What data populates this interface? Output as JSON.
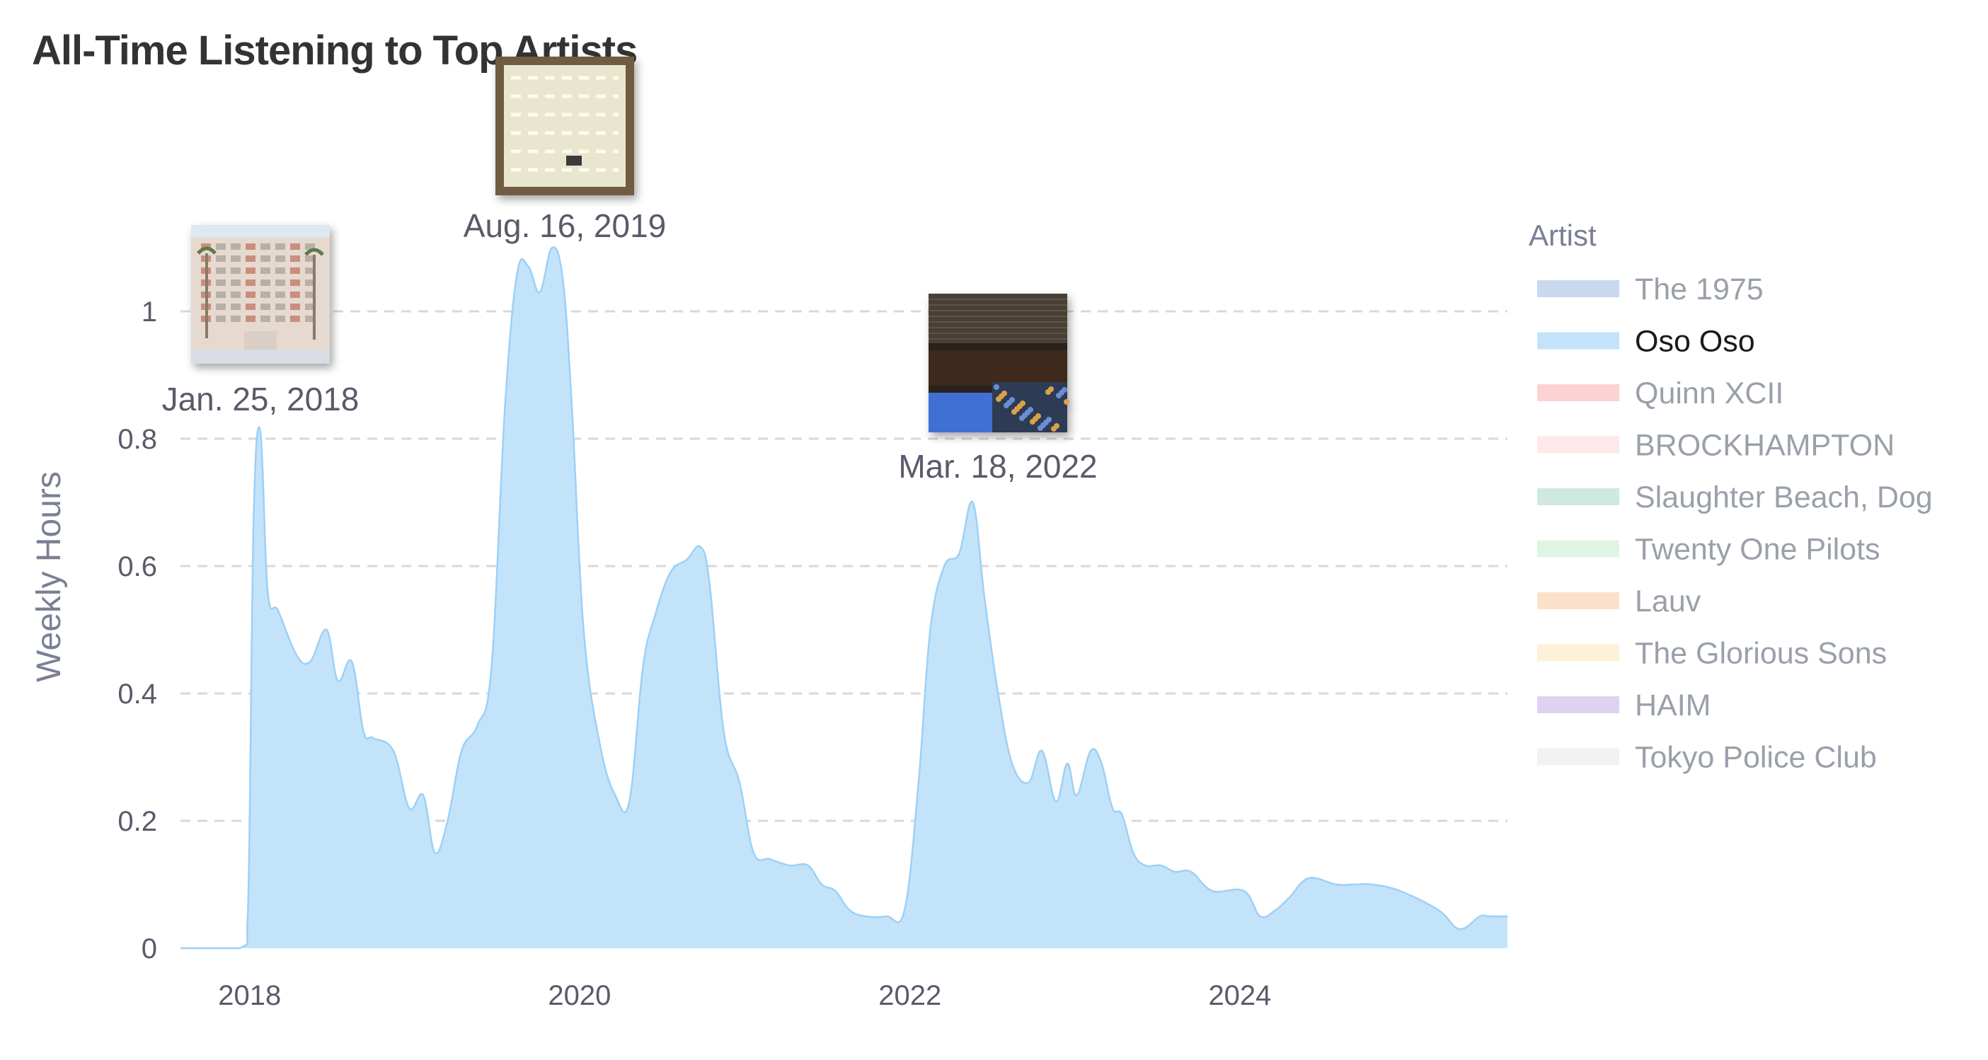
{
  "title": "All-Time Listening to Top Artists",
  "chart_data": {
    "type": "area",
    "ylabel": "Weekly Hours",
    "xlabel": "",
    "xlim": [
      "2017-08-01",
      "2025-08-15"
    ],
    "ylim": [
      0,
      1.12
    ],
    "x_ticks": [
      "2018",
      "2020",
      "2022",
      "2024"
    ],
    "y_ticks": [
      "0",
      "0.2",
      "0.4",
      "0.6",
      "0.8",
      "1"
    ],
    "grid": "horizontal dashed",
    "legend_title": "Artist",
    "legend_placement": "right",
    "legend": [
      {
        "name": "The 1975",
        "color": "#c7d8ef",
        "active": false
      },
      {
        "name": "Oso Oso",
        "color": "#c3e3fb",
        "active": true
      },
      {
        "name": "Quinn XCII",
        "color": "#fbd3d3",
        "active": false
      },
      {
        "name": "BROCKHAMPTON",
        "color": "#fde9e9",
        "active": false
      },
      {
        "name": "Slaughter Beach, Dog",
        "color": "#cfe9e0",
        "active": false
      },
      {
        "name": "Twenty One Pilots",
        "color": "#dff5e3",
        "active": false
      },
      {
        "name": "Lauv",
        "color": "#fce1ca",
        "active": false
      },
      {
        "name": "The Glorious Sons",
        "color": "#fdf1d8",
        "active": false
      },
      {
        "name": "HAIM",
        "color": "#ddd2f0",
        "active": false
      },
      {
        "name": "Tokyo Police Club",
        "color": "#f2f2f2",
        "active": false
      }
    ],
    "series": [
      {
        "name": "Oso Oso",
        "color": "#c3e3fb",
        "stroke": "#9ed0f5",
        "x": [
          "2017-08-01",
          "2017-12-10",
          "2017-12-28",
          "2018-01-10",
          "2018-01-25",
          "2018-02-10",
          "2018-03-05",
          "2018-04-15",
          "2018-05-15",
          "2018-06-20",
          "2018-07-15",
          "2018-08-15",
          "2018-09-10",
          "2018-10-01",
          "2018-11-15",
          "2018-12-20",
          "2019-01-20",
          "2019-02-15",
          "2019-03-15",
          "2019-04-15",
          "2019-05-20",
          "2019-06-20",
          "2019-07-20",
          "2019-08-16",
          "2019-09-10",
          "2019-10-05",
          "2019-11-01",
          "2019-11-25",
          "2019-12-15",
          "2020-01-10",
          "2020-02-15",
          "2020-03-20",
          "2020-04-20",
          "2020-05-20",
          "2020-06-15",
          "2020-07-20",
          "2020-08-25",
          "2020-09-25",
          "2020-10-15",
          "2020-11-15",
          "2020-12-20",
          "2021-01-20",
          "2021-02-25",
          "2021-04-10",
          "2021-05-20",
          "2021-06-20",
          "2021-07-20",
          "2021-08-20",
          "2021-09-25",
          "2021-11-10",
          "2021-12-20",
          "2022-01-20",
          "2022-02-15",
          "2022-03-18",
          "2022-04-20",
          "2022-05-20",
          "2022-06-15",
          "2022-07-15",
          "2022-08-15",
          "2022-09-20",
          "2022-10-20",
          "2022-11-20",
          "2022-12-15",
          "2023-01-05",
          "2023-02-05",
          "2023-03-01",
          "2023-03-25",
          "2023-04-15",
          "2023-05-10",
          "2023-06-05",
          "2023-07-10",
          "2023-08-10",
          "2023-09-15",
          "2023-11-01",
          "2024-01-10",
          "2024-02-15",
          "2024-03-20",
          "2024-04-20",
          "2024-06-01",
          "2024-08-01",
          "2024-09-10",
          "2024-10-20",
          "2024-12-20",
          "2025-03-15",
          "2025-05-01",
          "2025-06-15",
          "2025-07-05",
          "2025-08-15"
        ],
        "y": [
          0,
          0,
          0.05,
          0.68,
          0.81,
          0.56,
          0.53,
          0.46,
          0.45,
          0.5,
          0.42,
          0.45,
          0.34,
          0.33,
          0.31,
          0.22,
          0.24,
          0.15,
          0.2,
          0.31,
          0.35,
          0.44,
          0.85,
          1.06,
          1.07,
          1.03,
          1.1,
          1.05,
          0.85,
          0.5,
          0.32,
          0.24,
          0.23,
          0.44,
          0.52,
          0.59,
          0.61,
          0.63,
          0.57,
          0.34,
          0.26,
          0.15,
          0.14,
          0.13,
          0.13,
          0.1,
          0.09,
          0.06,
          0.05,
          0.05,
          0.06,
          0.26,
          0.5,
          0.6,
          0.62,
          0.7,
          0.55,
          0.4,
          0.29,
          0.26,
          0.31,
          0.23,
          0.29,
          0.24,
          0.31,
          0.29,
          0.22,
          0.21,
          0.15,
          0.13,
          0.13,
          0.12,
          0.12,
          0.09,
          0.09,
          0.05,
          0.06,
          0.08,
          0.11,
          0.1,
          0.1,
          0.1,
          0.09,
          0.06,
          0.03,
          0.05,
          0.05,
          0.05
        ]
      }
    ],
    "annotations": [
      {
        "label": "Jan. 25, 2018",
        "x": "2018-01-25",
        "image": "apartment-building-thumbnail"
      },
      {
        "label": "Aug. 16, 2019",
        "x": "2019-08-16",
        "image": "lightbox-thumbnail"
      },
      {
        "label": "Mar. 18, 2022",
        "x": "2022-03-18",
        "image": "roller-rink-thumbnail"
      }
    ]
  }
}
